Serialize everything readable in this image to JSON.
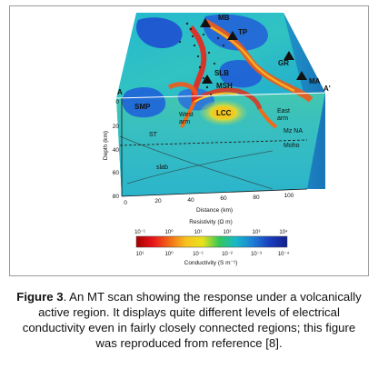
{
  "figure": {
    "labels": {
      "mb": "MB",
      "tp": "TP",
      "gr": "GR",
      "ma": "MA",
      "slb": "SLB",
      "msh": "MSH",
      "smp": "SMP",
      "lcc": "LCC",
      "a_left": "A",
      "a_right": "A'",
      "east_arm": [
        "East",
        "arm"
      ],
      "west_arm": [
        "West",
        "arm"
      ],
      "st": "ST",
      "mz_na": "Mz NA",
      "moho": "Moho",
      "slab": "slab"
    },
    "depth_axis": {
      "title": "Depth (km)",
      "ticks": [
        "0",
        "20",
        "40",
        "60",
        "80"
      ]
    },
    "distance_axis": {
      "title": "Distance (km)",
      "ticks": [
        "0",
        "20",
        "40",
        "60",
        "80",
        "100"
      ]
    },
    "colorbar": {
      "resistivity_title": "Resistivity (Ω m)",
      "resistivity_ticks": [
        "10⁻¹",
        "10⁰",
        "10¹",
        "10²",
        "10³",
        "10⁴"
      ],
      "conductivity_ticks": [
        "10¹",
        "10⁰",
        "10⁻¹",
        "10⁻²",
        "10⁻³",
        "10⁻⁴"
      ],
      "conductivity_title": "Conductivity (S m⁻¹)",
      "colors": [
        "#a50000",
        "#e8141a",
        "#f26a18",
        "#f7c21f",
        "#e8e21c",
        "#34c75a",
        "#17b8c9",
        "#1d7fd6",
        "#1a3fbe",
        "#121f8c"
      ]
    }
  },
  "caption": {
    "label": "Figure 3",
    "text": ". An MT scan showing the response under a volcanically active region. It displays quite different levels of electrical conductivity even in fairly closely connected regions; this figure was reproduced from reference [8]."
  }
}
